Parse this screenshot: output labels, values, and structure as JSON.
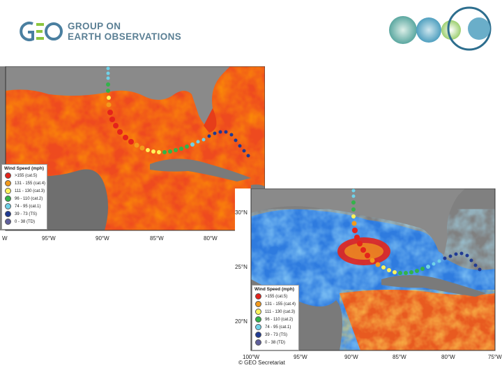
{
  "header": {
    "org_line1": "GROUP ON",
    "org_line2": "EARTH OBSERVATIONS",
    "logo_text": "GEO",
    "colors": {
      "brand_green": "#8cc63f",
      "brand_blue": "#4a7fa0",
      "brand_text": "#5a7f94",
      "ring_teal": "#2d6e8e"
    }
  },
  "map1": {
    "x_ticks": [
      "W",
      "95°W",
      "90°W",
      "85°W",
      "80°W"
    ],
    "legend": {
      "title": "Wind Speed (mph)",
      "items": [
        {
          "label": ">155 (cat.5)",
          "color": "#e4231b"
        },
        {
          "label": "131 - 155 (cat.4)",
          "color": "#f39a1c"
        },
        {
          "label": "111 - 130 (cat.3)",
          "color": "#fff35a"
        },
        {
          "label": "96 - 110 (cat.2)",
          "color": "#33b34a"
        },
        {
          "label": "74 - 95 (cat.1)",
          "color": "#6fd2e9"
        },
        {
          "label": "39 - 73 (TS)",
          "color": "#1f3a93"
        },
        {
          "label": "0 - 38 (TD)",
          "color": "#5f5f9c"
        }
      ]
    }
  },
  "map2": {
    "x_ticks": [
      "100°W",
      "95°W",
      "90°W",
      "85°W",
      "80°W",
      "75°W"
    ],
    "y_ticks": [
      "30°N",
      "25°N",
      "20°N"
    ],
    "legend": {
      "title": "Wind Speed (mph)",
      "items": [
        {
          "label": ">155 (cat.5)",
          "color": "#e4231b"
        },
        {
          "label": "131 - 155 (cat.4)",
          "color": "#f39a1c"
        },
        {
          "label": "111 - 130 (cat.3)",
          "color": "#fff35a"
        },
        {
          "label": "96 - 110 (cat.2)",
          "color": "#33b34a"
        },
        {
          "label": "74 - 95 (cat.1)",
          "color": "#6fd2e9"
        },
        {
          "label": "39 - 73 (TS)",
          "color": "#1f3a93"
        },
        {
          "label": "0 - 38 (TD)",
          "color": "#5f5f9c"
        }
      ]
    }
  },
  "footer": {
    "credit": "© GEO Secretariat"
  }
}
